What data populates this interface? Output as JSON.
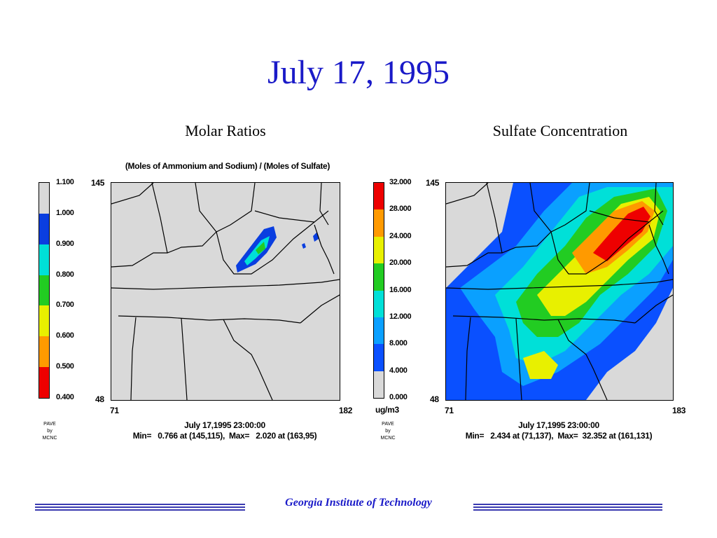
{
  "slide": {
    "title": "July 17, 1995",
    "footer": "Georgia Institute of Technology"
  },
  "left_panel": {
    "title": "Molar Ratios",
    "subtitle": "(Moles of Ammonium and Sodium) / (Moles of Sulfate)",
    "colorbar": {
      "labels": [
        "1.100",
        "1.000",
        "0.900",
        "0.800",
        "0.700",
        "0.600",
        "0.500",
        "0.400"
      ],
      "colors": [
        "#d9d9d9",
        "#0a3ee0",
        "#00e0d8",
        "#22cc22",
        "#e8f000",
        "#ff9a00",
        "#ee0000"
      ]
    },
    "axis": {
      "y_top": "145",
      "y_bottom": "48",
      "x_left": "71",
      "x_right": "182"
    },
    "credit": [
      "PAVE",
      "by",
      "MCNC"
    ],
    "timestamp": "July 17,1995 23:00:00",
    "minmax": "Min=   0.766 at (145,115),  Max=   2.020 at (163,95)"
  },
  "right_panel": {
    "title": "Sulfate Concentration",
    "colorbar": {
      "labels": [
        "32.000",
        "28.000",
        "24.000",
        "20.000",
        "16.000",
        "12.000",
        "8.000",
        "4.000",
        "0.000"
      ],
      "colors": [
        "#ee0000",
        "#ff9a00",
        "#e8f000",
        "#22cc22",
        "#00e0d8",
        "#0aa0ff",
        "#0a50ff",
        "#d9d9d9"
      ],
      "unit": "ug/m3"
    },
    "axis": {
      "y_top": "145",
      "y_bottom": "48",
      "x_left": "71",
      "x_right": "183"
    },
    "credit": [
      "PAVE",
      "by",
      "MCNC"
    ],
    "timestamp": "July 17,1995 23:00:00",
    "minmax": "Min=   2.434 at (71,137),  Max=  32.352 at (161,131)"
  }
}
